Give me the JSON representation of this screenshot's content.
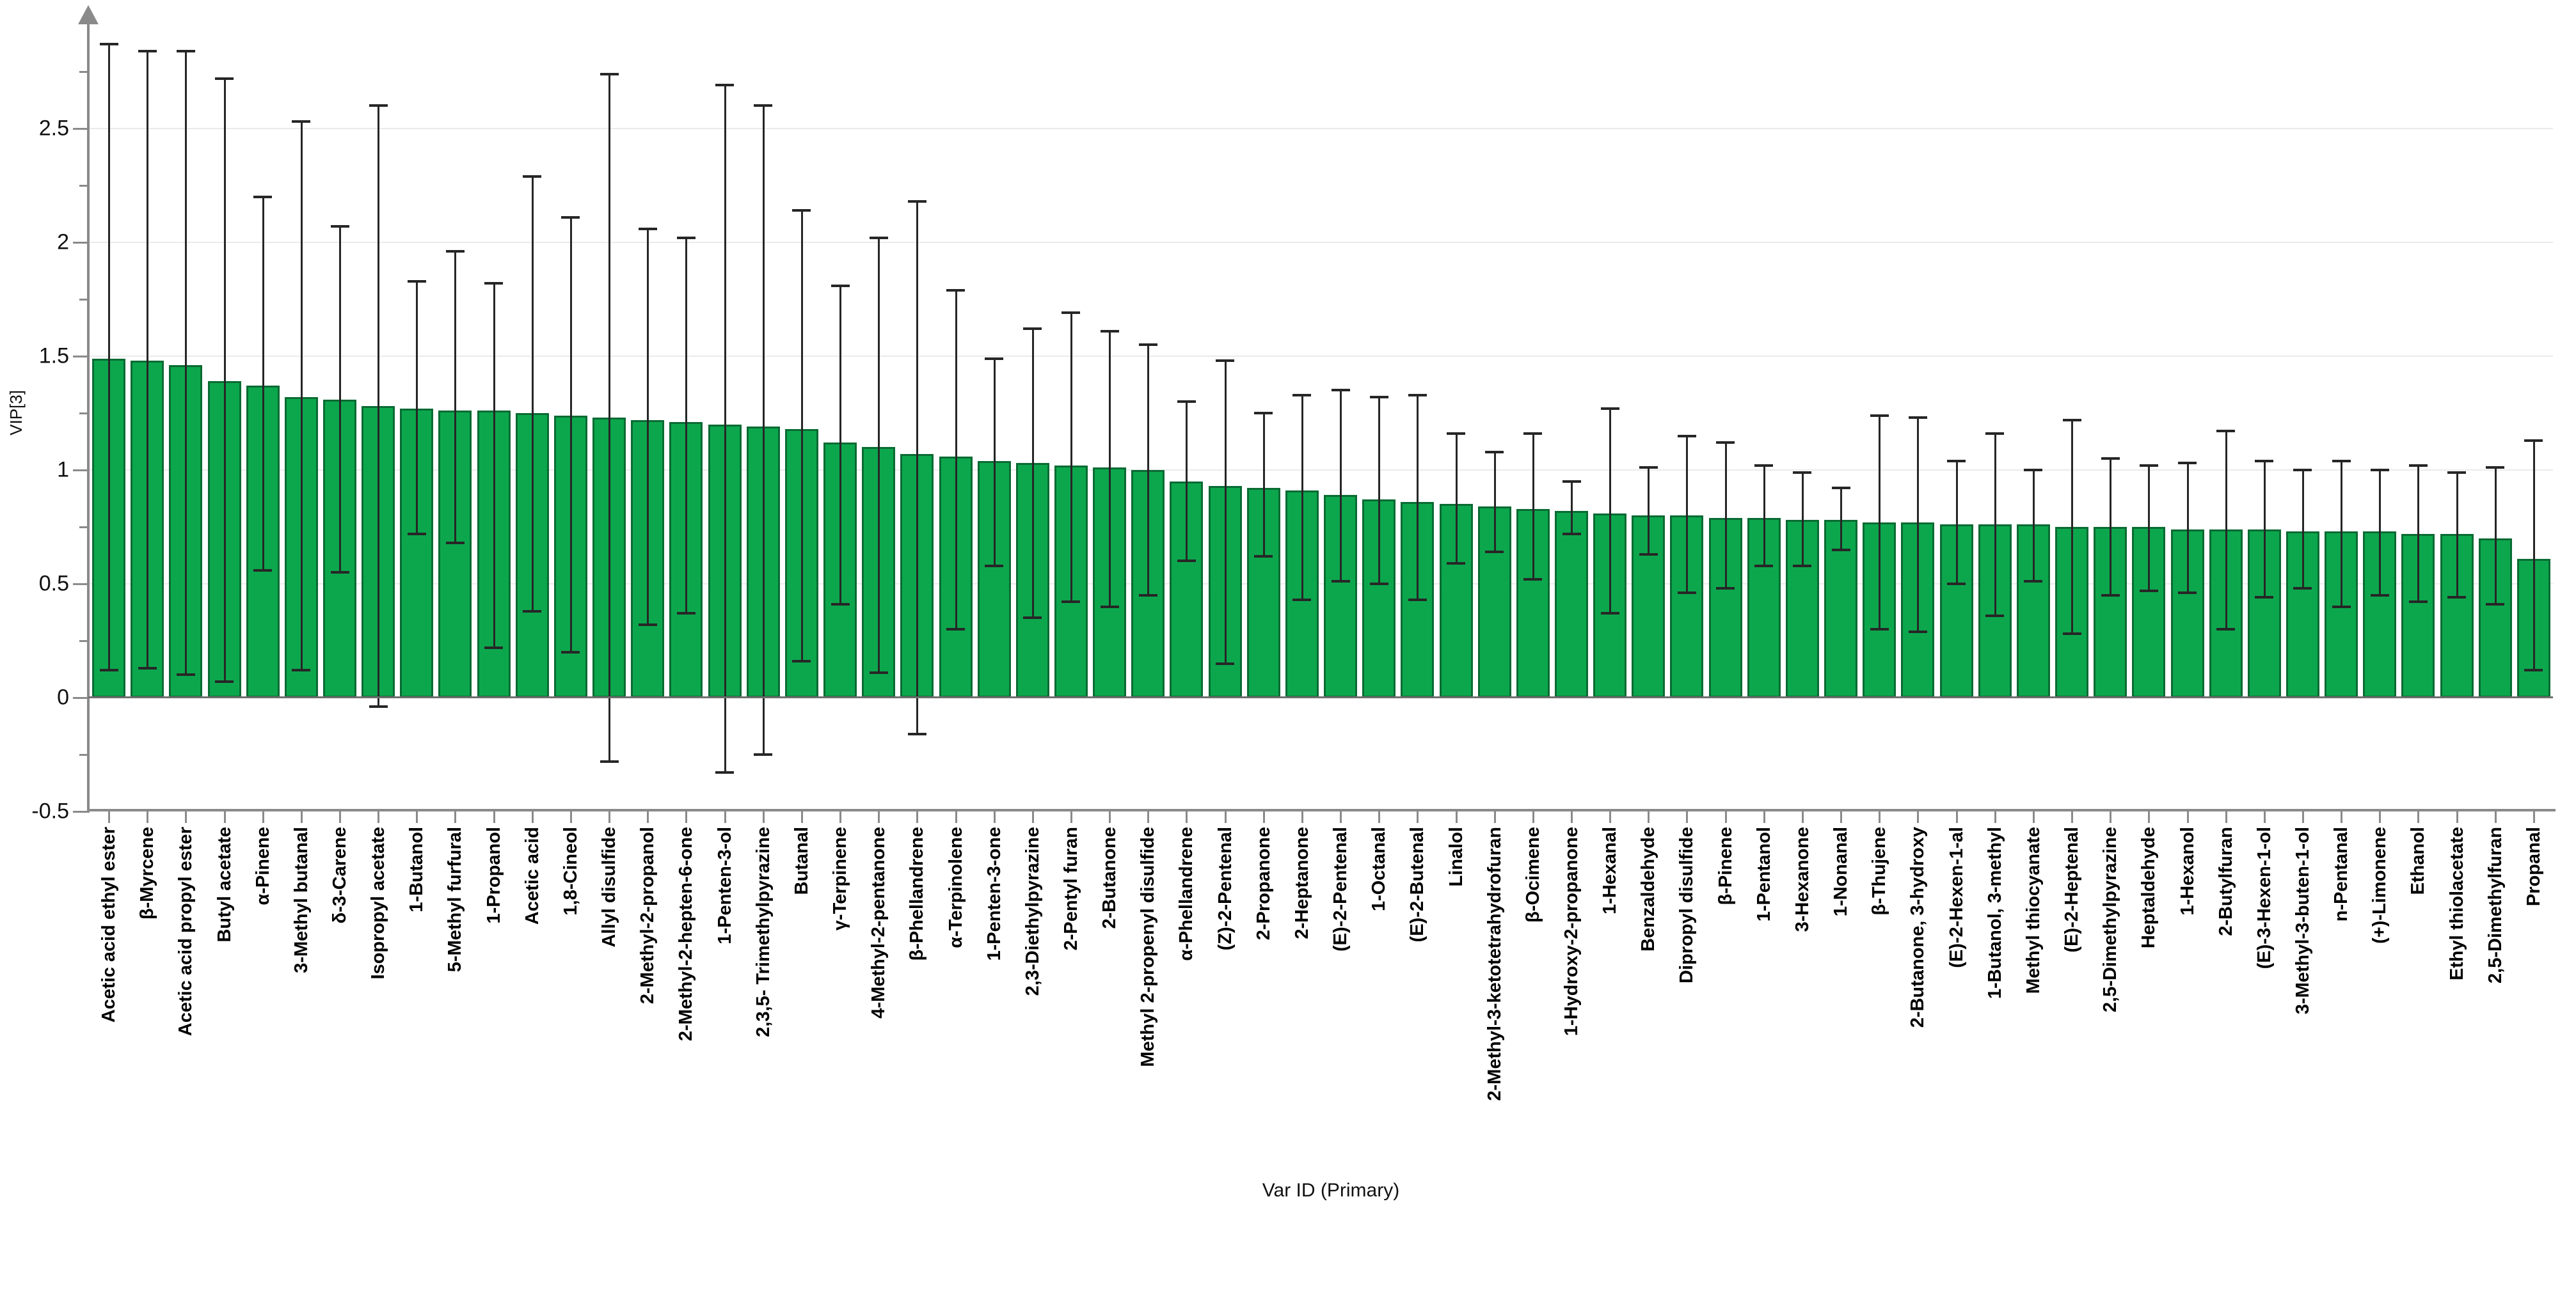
{
  "chart": {
    "y_axis_title": "VIP[3]",
    "x_axis_title": "Var ID (Primary)",
    "y_tick_labels": [
      "2.5",
      "2",
      "1.5",
      "1",
      "0.5",
      "0",
      "-0.5"
    ],
    "y_tick_values": [
      2.5,
      2.0,
      1.5,
      1.0,
      0.5,
      0.0,
      -0.5
    ]
  },
  "chart_data": {
    "type": "bar",
    "title": "",
    "xlabel": "Var ID (Primary)",
    "ylabel": "VIP[3]",
    "ylim": [
      -0.5,
      2.95
    ],
    "grid": true,
    "bar_color": "#0ca74d",
    "bar_edge_color": "#0a6b33",
    "error_bar_color": "#262626",
    "categories": [
      "Acetic acid ethyl ester",
      "β-Myrcene",
      "Acetic acid propyl ester",
      "Butyl acetate",
      "α-Pinene",
      "3-Methyl butanal",
      "δ-3-Carene",
      "Isopropyl acetate",
      "1-Butanol",
      "5-Methyl furfural",
      "1-Propanol",
      "Acetic acid",
      "1,8-Cineol",
      "Allyl disulfide",
      "2-Methyl-2-propanol",
      "2-Methyl-2-hepten-6-one",
      "1-Penten-3-ol",
      "2,3,5- Trimethylpyrazine",
      "Butanal",
      "γ-Terpinene",
      "4-Methyl-2-pentanone",
      "β-Phellandrene",
      "α-Terpinolene",
      "1-Penten-3-one",
      "2,3-Diethylpyrazine",
      "2-Pentyl furan",
      "2-Butanone",
      "Methyl 2-propenyl disulfide",
      "α-Phellandrene",
      "(Z)-2-Pentenal",
      "2-Propanone",
      "2-Heptanone",
      "(E)-2-Pentenal",
      "1-Octanal",
      "(E)-2-Butenal",
      "Linalol",
      "2-Methyl-3-ketotetrahydrofuran",
      "β-Ocimene",
      "1-Hydroxy-2-propanone",
      "1-Hexanal",
      "Benzaldehyde",
      "Dipropyl disulfide",
      "β-Pinene",
      "1-Pentanol",
      "3-Hexanone",
      "1-Nonanal",
      "β-Thujene",
      "2-Butanone, 3-hydroxy",
      "(E)-2-Hexen-1-al",
      "1-Butanol, 3-methyl",
      "Methyl thiocyanate",
      "(E)-2-Heptenal",
      "2,5-Dimethylpyrazine",
      "Heptaldehyde",
      "1-Hexanol",
      "2-Butylfuran",
      "(E)-3-Hexen-1-ol",
      "3-Methyl-3-buten-1-ol",
      "n-Pentanal",
      "(+)-Limonene",
      "Ethanol",
      "Ethyl thiolacetate",
      "2,5-Dimethylfuran",
      "Propanal"
    ],
    "values": [
      1.49,
      1.48,
      1.46,
      1.39,
      1.37,
      1.32,
      1.31,
      1.28,
      1.27,
      1.26,
      1.26,
      1.25,
      1.24,
      1.23,
      1.22,
      1.21,
      1.2,
      1.19,
      1.18,
      1.12,
      1.1,
      1.07,
      1.06,
      1.04,
      1.03,
      1.02,
      1.01,
      1.0,
      0.95,
      0.93,
      0.92,
      0.91,
      0.89,
      0.87,
      0.86,
      0.85,
      0.84,
      0.83,
      0.82,
      0.81,
      0.8,
      0.8,
      0.79,
      0.79,
      0.78,
      0.78,
      0.77,
      0.77,
      0.76,
      0.76,
      0.76,
      0.75,
      0.75,
      0.75,
      0.74,
      0.74,
      0.74,
      0.73,
      0.73,
      0.73,
      0.72,
      0.72,
      0.7,
      0.61
    ],
    "error_high": [
      2.87,
      2.84,
      2.84,
      2.72,
      2.2,
      2.53,
      2.07,
      2.6,
      1.83,
      1.96,
      1.82,
      2.29,
      2.11,
      2.74,
      2.06,
      2.02,
      2.69,
      2.6,
      2.14,
      1.81,
      2.02,
      2.18,
      1.79,
      1.49,
      1.62,
      1.69,
      1.61,
      1.55,
      1.3,
      1.48,
      1.25,
      1.33,
      1.35,
      1.32,
      1.33,
      1.16,
      1.08,
      1.16,
      0.95,
      1.27,
      1.01,
      1.15,
      1.12,
      1.02,
      0.99,
      0.92,
      1.24,
      1.23,
      1.04,
      1.16,
      1.0,
      1.22,
      1.05,
      1.02,
      1.03,
      1.17,
      1.04,
      1.0,
      1.04,
      1.0,
      1.02,
      0.99,
      1.01,
      1.13
    ],
    "error_low": [
      0.12,
      0.13,
      0.1,
      0.07,
      0.56,
      0.12,
      0.55,
      -0.04,
      0.72,
      0.68,
      0.22,
      0.38,
      0.2,
      -0.28,
      0.32,
      0.37,
      -0.33,
      -0.25,
      0.16,
      0.41,
      0.11,
      -0.16,
      0.3,
      0.58,
      0.35,
      0.42,
      0.4,
      0.45,
      0.6,
      0.15,
      0.62,
      0.43,
      0.51,
      0.5,
      0.43,
      0.59,
      0.64,
      0.52,
      0.72,
      0.37,
      0.63,
      0.46,
      0.48,
      0.58,
      0.58,
      0.65,
      0.3,
      0.29,
      0.5,
      0.36,
      0.51,
      0.28,
      0.45,
      0.47,
      0.46,
      0.3,
      0.44,
      0.48,
      0.4,
      0.45,
      0.42,
      0.44,
      0.41,
      0.12
    ]
  }
}
